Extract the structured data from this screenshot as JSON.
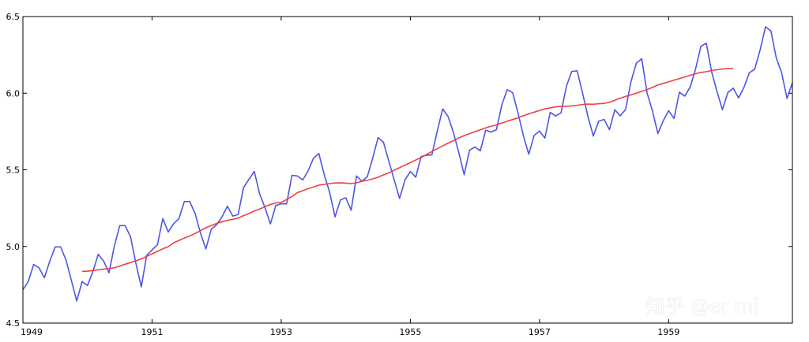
{
  "chart_data": {
    "type": "line",
    "title": "",
    "xlabel": "",
    "ylabel": "",
    "xlim": [
      1949.0,
      1960.9167
    ],
    "ylim": [
      4.5,
      6.5
    ],
    "x_ticks": [
      {
        "value": 1949,
        "label": "1949"
      },
      {
        "value": 1951,
        "label": "1951"
      },
      {
        "value": 1953,
        "label": "1953"
      },
      {
        "value": 1955,
        "label": "1955"
      },
      {
        "value": 1957,
        "label": "1957"
      },
      {
        "value": 1959,
        "label": "1959"
      }
    ],
    "y_ticks": [
      {
        "value": 4.5,
        "label": "4.5"
      },
      {
        "value": 5.0,
        "label": "5.0"
      },
      {
        "value": 5.5,
        "label": "5.5"
      },
      {
        "value": 6.0,
        "label": "6.0"
      },
      {
        "value": 6.5,
        "label": "6.5"
      }
    ],
    "grid": false,
    "legend": "none",
    "x_start": 1949.0,
    "x_step": 0.083333,
    "series": [
      {
        "color": "#4d55e6",
        "x_start": 1949.0,
        "values": [
          4.718,
          4.771,
          4.883,
          4.86,
          4.796,
          4.905,
          4.997,
          4.997,
          4.913,
          4.779,
          4.644,
          4.771,
          4.745,
          4.836,
          4.949,
          4.905,
          4.828,
          5.004,
          5.136,
          5.136,
          5.063,
          4.89,
          4.736,
          4.942,
          4.977,
          5.011,
          5.182,
          5.094,
          5.148,
          5.182,
          5.293,
          5.293,
          5.215,
          5.087,
          4.984,
          5.112,
          5.142,
          5.193,
          5.263,
          5.198,
          5.209,
          5.384,
          5.438,
          5.489,
          5.342,
          5.252,
          5.147,
          5.268,
          5.278,
          5.278,
          5.464,
          5.46,
          5.434,
          5.493,
          5.576,
          5.606,
          5.468,
          5.352,
          5.193,
          5.303,
          5.318,
          5.236,
          5.46,
          5.425,
          5.455,
          5.576,
          5.71,
          5.68,
          5.557,
          5.434,
          5.313,
          5.434,
          5.489,
          5.452,
          5.587,
          5.595,
          5.598,
          5.753,
          5.897,
          5.849,
          5.744,
          5.613,
          5.468,
          5.628,
          5.649,
          5.624,
          5.759,
          5.746,
          5.762,
          5.924,
          6.023,
          6.004,
          5.872,
          5.724,
          5.602,
          5.724,
          5.753,
          5.707,
          5.875,
          5.852,
          5.872,
          6.045,
          6.142,
          6.146,
          6.001,
          5.849,
          5.72,
          5.817,
          5.829,
          5.762,
          5.892,
          5.852,
          5.894,
          6.075,
          6.196,
          6.225,
          6.001,
          5.883,
          5.737,
          5.82,
          5.886,
          5.835,
          6.006,
          5.981,
          6.04,
          6.157,
          6.306,
          6.326,
          6.138,
          6.009,
          5.892,
          6.004,
          6.033,
          5.969,
          6.038,
          6.133,
          6.157,
          6.282,
          6.433,
          6.407,
          6.23,
          6.133,
          5.966,
          6.068
        ]
      },
      {
        "color": "#ee4040",
        "x_start": 1949.9167,
        "values": [
          4.837,
          4.839,
          4.843,
          4.847,
          4.852,
          4.856,
          4.861,
          4.872,
          4.884,
          4.895,
          4.906,
          4.919,
          4.935,
          4.951,
          4.968,
          4.985,
          4.998,
          5.023,
          5.039,
          5.055,
          5.069,
          5.085,
          5.103,
          5.122,
          5.136,
          5.15,
          5.161,
          5.171,
          5.177,
          5.185,
          5.201,
          5.214,
          5.232,
          5.244,
          5.26,
          5.274,
          5.284,
          5.288,
          5.306,
          5.326,
          5.351,
          5.364,
          5.377,
          5.388,
          5.4,
          5.405,
          5.41,
          5.414,
          5.415,
          5.413,
          5.41,
          5.415,
          5.425,
          5.432,
          5.441,
          5.452,
          5.467,
          5.48,
          5.497,
          5.514,
          5.53,
          5.547,
          5.564,
          5.58,
          5.6,
          5.619,
          5.638,
          5.656,
          5.674,
          5.69,
          5.708,
          5.723,
          5.736,
          5.749,
          5.761,
          5.774,
          5.784,
          5.793,
          5.805,
          5.817,
          5.828,
          5.839,
          5.853,
          5.865,
          5.876,
          5.887,
          5.898,
          5.904,
          5.911,
          5.914,
          5.914,
          5.917,
          5.921,
          5.926,
          5.929,
          5.928,
          5.931,
          5.933,
          5.941,
          5.954,
          5.968,
          5.979,
          5.989,
          6.0,
          6.012,
          6.024,
          6.038,
          6.054,
          6.064,
          6.074,
          6.085,
          6.095,
          6.106,
          6.117,
          6.127,
          6.135,
          6.14,
          6.148,
          6.153,
          6.158,
          6.16,
          6.161
        ]
      }
    ]
  },
  "watermark": {
    "text": "知乎 @er mi"
  }
}
